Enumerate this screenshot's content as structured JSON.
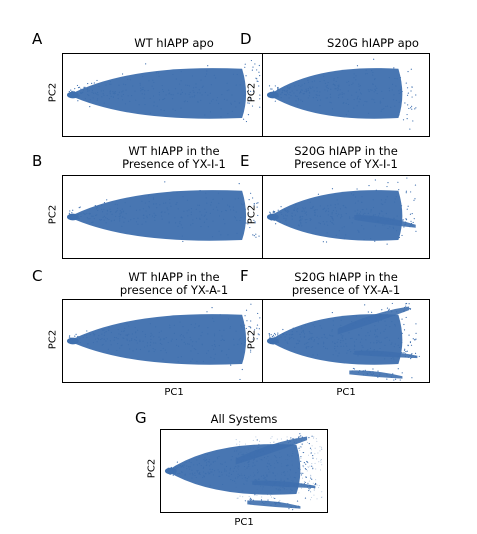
{
  "colors": {
    "point": "#3e6fae",
    "axis": "#000000",
    "background": "#ffffff"
  },
  "chart_data": [
    {
      "id": "A",
      "type": "scatter",
      "letter": "A",
      "title": [
        "WT hIAPP apo"
      ],
      "xlabel": "",
      "ylabel": "PC2",
      "grid": false,
      "extra_branches": []
    },
    {
      "id": "B",
      "type": "scatter",
      "letter": "B",
      "title": [
        "WT hIAPP in the",
        "Presence of YX-I-1"
      ],
      "xlabel": "",
      "ylabel": "PC2",
      "grid": false,
      "extra_branches": []
    },
    {
      "id": "C",
      "type": "scatter",
      "letter": "C",
      "title": [
        "WT hIAPP in the",
        "presence of YX-A-1"
      ],
      "xlabel": "PC1",
      "ylabel": "PC2",
      "grid": false,
      "extra_branches": []
    },
    {
      "id": "D",
      "type": "scatter",
      "letter": "D",
      "title": [
        "S20G hIAPP apo"
      ],
      "xlabel": "",
      "ylabel": "PC2",
      "grid": false,
      "extra_branches": []
    },
    {
      "id": "E",
      "type": "scatter",
      "letter": "E",
      "title": [
        "S20G hIAPP in the",
        "Presence of YX-I-1"
      ],
      "xlabel": "",
      "ylabel": "PC2",
      "grid": false,
      "extra_branches": [
        "right-tail"
      ]
    },
    {
      "id": "F",
      "type": "scatter",
      "letter": "F",
      "title": [
        "S20G hIAPP in the",
        "presence of YX-A-1"
      ],
      "xlabel": "PC1",
      "ylabel": "PC2",
      "grid": false,
      "extra_branches": [
        "upper-arm",
        "mid-arm",
        "lower-arm"
      ]
    },
    {
      "id": "G",
      "type": "scatter",
      "letter": "G",
      "title": [
        "All Systems"
      ],
      "xlabel": "PC1",
      "ylabel": "PC2",
      "grid": false,
      "extra_branches": [
        "upper-arm",
        "mid-arm",
        "lower-arm",
        "diffuse-halo"
      ]
    }
  ]
}
